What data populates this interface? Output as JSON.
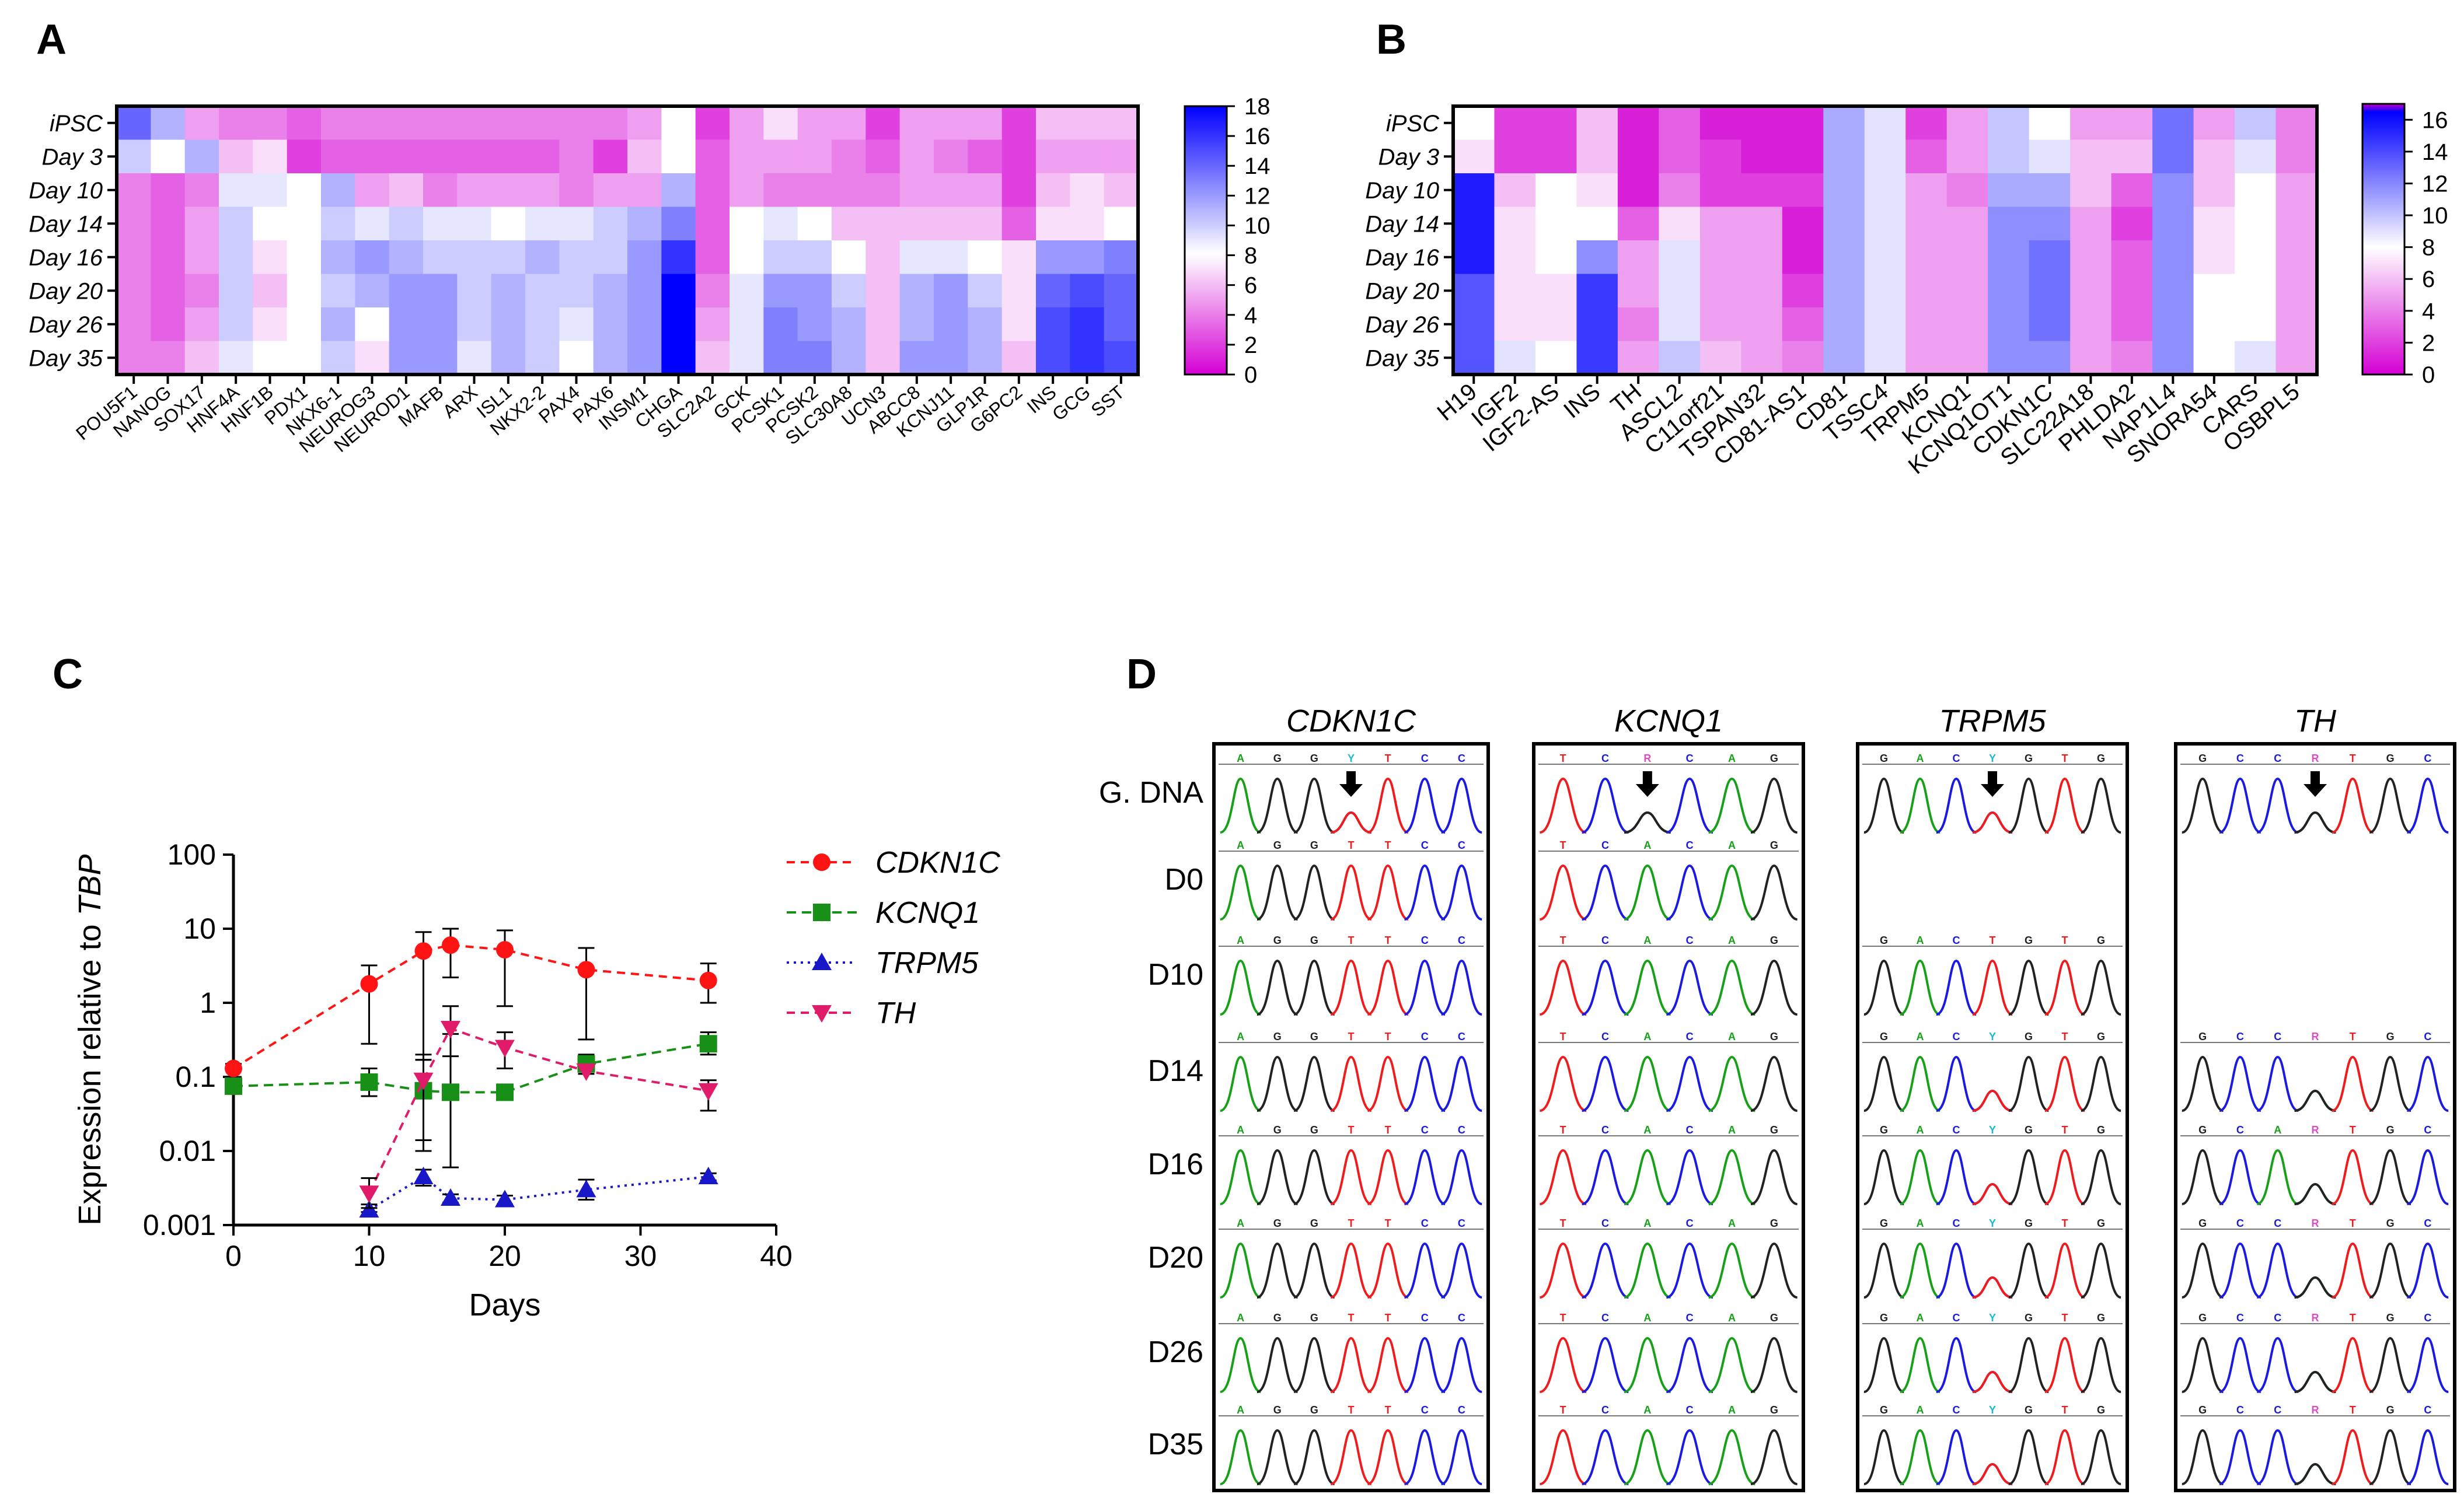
{
  "panels": {
    "A": {
      "label": "A",
      "chart_data": {
        "type": "heatmap",
        "rows": [
          "iPSC",
          "Day 3",
          "Day 10",
          "Day 14",
          "Day 16",
          "Day 20",
          "Day 26",
          "Day 35"
        ],
        "columns": [
          "POU5F1",
          "NANOG",
          "SOX17",
          "HNF4A",
          "HNF1B",
          "PDX1",
          "NKX6-1",
          "NEUROG3",
          "NEUROD1",
          "MAFB",
          "ARX",
          "ISL1",
          "NKX2-2",
          "PAX4",
          "PAX6",
          "INSM1",
          "CHGA",
          "SLC2A2",
          "GCK",
          "PCSK1",
          "PCSK2",
          "SLC30A8",
          "UCN3",
          "ABCC8",
          "KCNJ11",
          "GLP1R",
          "G6PC2",
          "INS",
          "GCG",
          "SST"
        ],
        "values": [
          [
            14,
            11,
            5,
            4,
            4,
            3,
            4,
            4,
            4,
            4,
            4,
            4,
            4,
            4,
            4,
            5,
            8,
            2,
            5,
            7,
            5,
            5,
            2,
            5,
            5,
            5,
            2,
            6,
            6,
            6
          ],
          [
            10,
            8,
            11,
            6,
            7,
            2,
            3,
            3,
            3,
            3,
            3,
            3,
            3,
            4,
            2,
            6,
            8,
            3,
            5,
            5,
            5,
            4,
            3,
            5,
            4,
            3,
            2,
            5,
            5,
            5
          ],
          [
            4,
            3,
            4,
            9,
            9,
            8,
            11,
            5,
            6,
            4,
            5,
            5,
            5,
            4,
            5,
            5,
            11,
            3,
            5,
            4,
            4,
            4,
            4,
            5,
            5,
            5,
            2,
            6,
            7,
            6
          ],
          [
            4,
            3,
            5,
            10,
            8,
            8,
            10,
            9,
            10,
            9,
            9,
            8,
            9,
            9,
            10,
            11,
            13,
            3,
            8,
            9,
            8,
            6,
            6,
            6,
            6,
            6,
            3,
            7,
            7,
            8
          ],
          [
            4,
            3,
            5,
            10,
            7,
            8,
            11,
            12,
            11,
            10,
            10,
            10,
            11,
            10,
            10,
            12,
            16,
            3,
            8,
            10,
            10,
            8,
            6,
            9,
            9,
            8,
            7,
            12,
            12,
            13
          ],
          [
            4,
            3,
            4,
            10,
            6,
            8,
            10,
            11,
            12,
            12,
            10,
            11,
            10,
            10,
            11,
            12,
            18,
            4,
            9,
            12,
            12,
            10,
            6,
            11,
            12,
            10,
            7,
            14,
            15,
            14
          ],
          [
            4,
            3,
            5,
            10,
            7,
            8,
            11,
            8,
            12,
            12,
            10,
            11,
            10,
            9,
            11,
            12,
            18,
            5,
            9,
            13,
            12,
            11,
            6,
            11,
            12,
            11,
            7,
            15,
            16,
            14
          ],
          [
            4,
            4,
            6,
            9,
            8,
            8,
            10,
            7,
            12,
            12,
            9,
            11,
            10,
            8,
            11,
            12,
            18,
            6,
            9,
            13,
            13,
            11,
            6,
            12,
            12,
            11,
            6,
            15,
            16,
            15
          ]
        ],
        "colorbar": {
          "min": 0,
          "max": 18,
          "ticks": [
            "18",
            "16",
            "14",
            "12",
            "10",
            "8",
            "6",
            "4",
            "2",
            "0"
          ]
        }
      }
    },
    "B": {
      "label": "B",
      "chart_data": {
        "type": "heatmap",
        "rows": [
          "iPSC",
          "Day 3",
          "Day 10",
          "Day 14",
          "Day 16",
          "Day 20",
          "Day 26",
          "Day 35"
        ],
        "columns": [
          "H19",
          "IGF2",
          "IGF2-AS",
          "INS",
          "TH",
          "ASCL2",
          "C11orf21",
          "TSPAN32",
          "CD81-AS1",
          "CD81",
          "TSSC4",
          "TRPM5",
          "KCNQ1",
          "KCNQ1OT1",
          "CDKN1C",
          "SLC22A18",
          "PHLDA2",
          "NAP1L4",
          "SNORA54",
          "CARS",
          "OSBPL5"
        ],
        "values": [
          [
            8,
            2,
            2,
            6,
            1,
            3,
            1,
            1,
            1,
            11,
            9,
            2,
            5,
            10,
            8,
            5,
            5,
            13,
            5,
            10,
            4
          ],
          [
            7,
            2,
            2,
            6,
            1,
            3,
            2,
            1,
            1,
            11,
            9,
            3,
            5,
            10,
            9,
            6,
            6,
            13,
            6,
            9,
            4
          ],
          [
            16,
            6,
            8,
            7,
            1,
            4,
            2,
            2,
            2,
            11,
            9,
            5,
            4,
            11,
            11,
            6,
            3,
            12,
            6,
            8,
            5
          ],
          [
            16,
            7,
            8,
            8,
            3,
            7,
            5,
            5,
            1,
            11,
            9,
            5,
            5,
            12,
            12,
            5,
            2,
            12,
            7,
            8,
            5
          ],
          [
            16,
            7,
            8,
            12,
            5,
            9,
            5,
            5,
            1,
            11,
            9,
            5,
            5,
            12,
            13,
            5,
            3,
            12,
            7,
            8,
            5
          ],
          [
            14,
            7,
            7,
            15,
            5,
            9,
            5,
            5,
            2,
            11,
            9,
            5,
            5,
            12,
            13,
            5,
            3,
            12,
            8,
            8,
            5
          ],
          [
            14,
            7,
            7,
            15,
            4,
            9,
            5,
            5,
            3,
            11,
            9,
            5,
            5,
            12,
            13,
            5,
            3,
            12,
            8,
            8,
            5
          ],
          [
            14,
            9,
            8,
            15,
            5,
            10,
            6,
            5,
            4,
            11,
            9,
            5,
            5,
            12,
            12,
            5,
            4,
            12,
            8,
            9,
            5
          ]
        ],
        "colorbar": {
          "min": 0,
          "max": 17,
          "ticks": [
            "16",
            "14",
            "12",
            "10",
            "8",
            "6",
            "4",
            "2",
            "0"
          ]
        }
      }
    },
    "C": {
      "label": "C",
      "chart_data": {
        "type": "line",
        "xlabel": "Days",
        "ylabel_prefix": "Expression relative to ",
        "ylabel_italic": "TBP",
        "xlim": [
          0,
          40
        ],
        "ylim": [
          0.001,
          100
        ],
        "yscale": "log",
        "x_ticks": [
          "0",
          "10",
          "20",
          "30",
          "40"
        ],
        "y_ticks": [
          "100",
          "10",
          "1",
          "0.1",
          "0.01",
          "0.001"
        ],
        "legend_position": "right",
        "series": [
          {
            "name": "CDKN1C",
            "color": "#ff1414",
            "marker": "circle",
            "x": [
              0,
              10,
              14,
              16,
              20,
              26,
              35
            ],
            "y": [
              0.13,
              1.8,
              5.0,
              6.0,
              5.2,
              2.8,
              2.0
            ],
            "err_low": [
              0.1,
              0.28,
              0.17,
              2.2,
              0.9,
              0.32,
              1.0
            ],
            "err_high": [
              0.15,
              3.2,
              9.0,
              10.0,
              9.5,
              5.5,
              3.4
            ]
          },
          {
            "name": "KCNQ1",
            "color": "#189018",
            "marker": "square",
            "x": [
              0,
              10,
              14,
              16,
              20,
              26,
              35
            ],
            "y": [
              0.075,
              0.085,
              0.065,
              0.062,
              0.062,
              0.15,
              0.28
            ],
            "err_low": [
              0.06,
              0.055,
              0.014,
              0.006,
              0.055,
              0.11,
              0.2
            ],
            "err_high": [
              0.09,
              0.13,
              0.17,
              0.38,
              0.07,
              0.2,
              0.4
            ]
          },
          {
            "name": "TRPM5",
            "color": "#1818c8",
            "marker": "triangle-up",
            "x": [
              10,
              14,
              16,
              20,
              26,
              35
            ],
            "y": [
              0.0016,
              0.0045,
              0.0023,
              0.0022,
              0.003,
              0.0045
            ],
            "err_low": [
              0.0015,
              0.0034,
              0.002,
              0.0019,
              0.0022,
              0.004
            ],
            "err_high": [
              0.0019,
              0.0056,
              0.0026,
              0.0025,
              0.0041,
              0.005
            ]
          },
          {
            "name": "TH",
            "color": "#e01c6a",
            "marker": "triangle-down",
            "x": [
              10,
              14,
              16,
              20,
              26,
              35
            ],
            "y": [
              0.0027,
              0.09,
              0.45,
              0.25,
              0.12,
              0.065
            ],
            "err_low": [
              0.0017,
              0.01,
              0.19,
              0.13,
              0.11,
              0.035
            ],
            "err_high": [
              0.0043,
              0.2,
              0.9,
              0.4,
              0.14,
              0.09
            ]
          }
        ]
      }
    },
    "D": {
      "label": "D",
      "gene_titles": [
        "CDKN1C",
        "KCNQ1",
        "TRPM5",
        "TH"
      ],
      "row_labels": [
        "G. DNA",
        "D0",
        "D10",
        "D14",
        "D16",
        "D20",
        "D26",
        "D35"
      ],
      "chromatograms": [
        {
          "gene": "CDKN1C",
          "rows": [
            {
              "bases": [
                "A",
                "G",
                "G",
                "Y",
                "T",
                "C",
                "C"
              ],
              "arrow": true
            },
            {
              "bases": [
                "A",
                "G",
                "G",
                "T",
                "T",
                "C",
                "C"
              ]
            },
            {
              "bases": [
                "A",
                "G",
                "G",
                "T",
                "T",
                "C",
                "C"
              ]
            },
            {
              "bases": [
                "A",
                "G",
                "G",
                "T",
                "T",
                "C",
                "C"
              ]
            },
            {
              "bases": [
                "A",
                "G",
                "G",
                "T",
                "T",
                "C",
                "C"
              ]
            },
            {
              "bases": [
                "A",
                "G",
                "G",
                "T",
                "T",
                "C",
                "C"
              ]
            },
            {
              "bases": [
                "A",
                "G",
                "G",
                "T",
                "T",
                "C",
                "C"
              ]
            },
            {
              "bases": [
                "A",
                "G",
                "G",
                "T",
                "T",
                "C",
                "C"
              ]
            }
          ]
        },
        {
          "gene": "KCNQ1",
          "rows": [
            {
              "bases": [
                "T",
                "C",
                "R",
                "C",
                "A",
                "G"
              ],
              "arrow": true
            },
            {
              "bases": [
                "T",
                "C",
                "A",
                "C",
                "A",
                "G"
              ]
            },
            {
              "bases": [
                "T",
                "C",
                "A",
                "C",
                "A",
                "G"
              ]
            },
            {
              "bases": [
                "T",
                "C",
                "A",
                "C",
                "A",
                "G"
              ]
            },
            {
              "bases": [
                "T",
                "C",
                "A",
                "C",
                "A",
                "G"
              ]
            },
            {
              "bases": [
                "T",
                "C",
                "A",
                "C",
                "A",
                "G"
              ]
            },
            {
              "bases": [
                "T",
                "C",
                "A",
                "C",
                "A",
                "G"
              ]
            },
            {
              "bases": [
                "T",
                "C",
                "A",
                "C",
                "A",
                "G"
              ]
            }
          ]
        },
        {
          "gene": "TRPM5",
          "rows": [
            {
              "bases": [
                "G",
                "A",
                "C",
                "Y",
                "G",
                "T",
                "G"
              ],
              "arrow": true
            },
            null,
            {
              "bases": [
                "G",
                "A",
                "C",
                "T",
                "G",
                "T",
                "G"
              ]
            },
            {
              "bases": [
                "G",
                "A",
                "C",
                "Y",
                "G",
                "T",
                "G"
              ]
            },
            {
              "bases": [
                "G",
                "A",
                "C",
                "Y",
                "G",
                "T",
                "G"
              ]
            },
            {
              "bases": [
                "G",
                "A",
                "C",
                "Y",
                "G",
                "T",
                "G"
              ]
            },
            {
              "bases": [
                "G",
                "A",
                "C",
                "Y",
                "G",
                "T",
                "G"
              ]
            },
            {
              "bases": [
                "G",
                "A",
                "C",
                "Y",
                "G",
                "T",
                "G"
              ]
            }
          ]
        },
        {
          "gene": "TH",
          "rows": [
            {
              "bases": [
                "G",
                "C",
                "C",
                "R",
                "T",
                "G",
                "C"
              ],
              "arrow": true
            },
            null,
            null,
            {
              "bases": [
                "G",
                "C",
                "C",
                "R",
                "T",
                "G",
                "C"
              ]
            },
            {
              "bases": [
                "G",
                "C",
                "A",
                "R",
                "T",
                "G",
                "C"
              ]
            },
            {
              "bases": [
                "G",
                "C",
                "C",
                "R",
                "T",
                "G",
                "C"
              ]
            },
            {
              "bases": [
                "G",
                "C",
                "C",
                "R",
                "T",
                "G",
                "C"
              ]
            },
            {
              "bases": [
                "G",
                "C",
                "C",
                "R",
                "T",
                "G",
                "C"
              ]
            }
          ]
        }
      ]
    }
  },
  "colors": {
    "base_A": "#18a018",
    "base_C": "#1a1ae0",
    "base_G": "#222222",
    "base_T": "#ee1c1c",
    "ambig_Y": "#19b9d4",
    "ambig_R": "#e14bc0",
    "heat_low": "#d400d4",
    "heat_mid": "#ffffff",
    "heat_high": "#0000ff"
  }
}
